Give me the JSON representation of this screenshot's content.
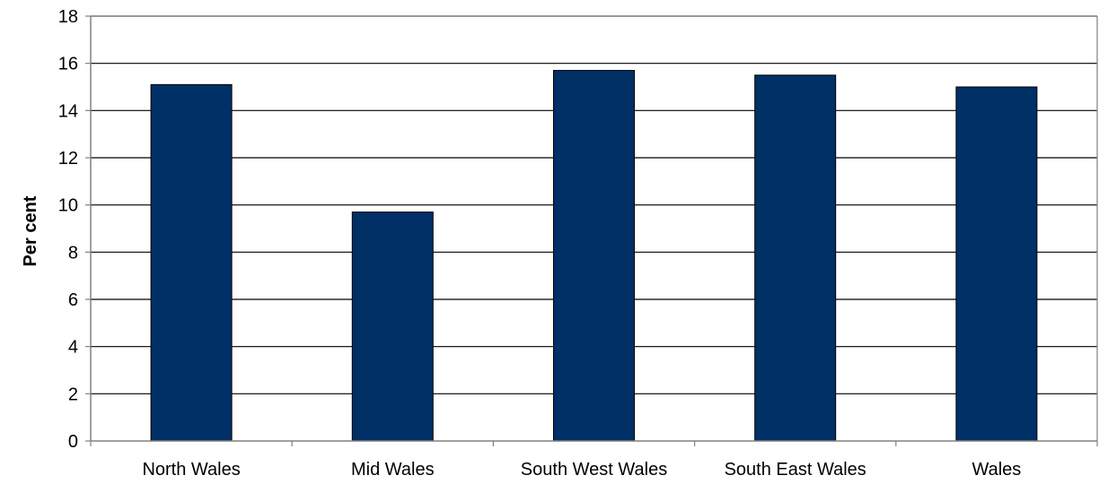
{
  "chart_data": {
    "type": "bar",
    "title": "",
    "xlabel": "",
    "ylabel": "Per cent",
    "categories": [
      "North Wales",
      "Mid Wales",
      "South West Wales",
      "South East Wales",
      "Wales"
    ],
    "values": [
      15.1,
      9.7,
      15.7,
      15.5,
      15.0
    ],
    "ylim": [
      0,
      18
    ],
    "yticks": [
      "0",
      "2",
      "4",
      "6",
      "8",
      "10",
      "12",
      "14",
      "16",
      "18"
    ],
    "grid": true,
    "legend": "none",
    "colors": {
      "bar": "#003066",
      "bar_stroke": "#000000",
      "grid": "#000000",
      "frame": "#808080"
    }
  }
}
